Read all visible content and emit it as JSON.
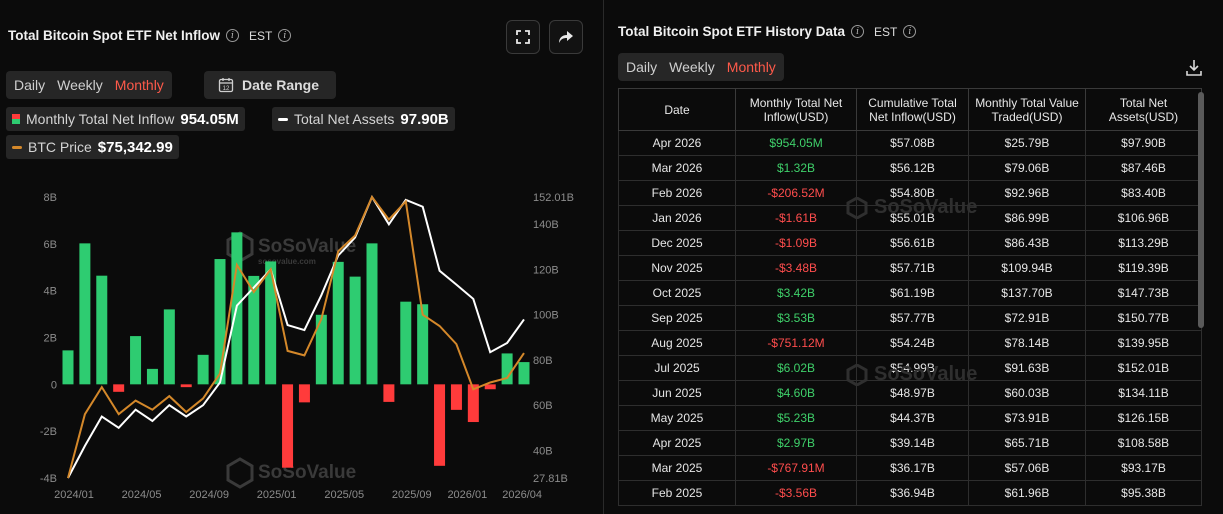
{
  "left": {
    "title": "Total Bitcoin Spot ETF Net Inflow",
    "timezone": "EST",
    "tabs": [
      "Daily",
      "Weekly",
      "Monthly"
    ],
    "active_tab": "Monthly",
    "date_range_label": "Date Range",
    "calendar_day": "12",
    "legend": {
      "inflow_label": "Monthly Total Net Inflow",
      "inflow_value": "954.05M",
      "assets_label": "Total Net Assets",
      "assets_value": "97.90B",
      "btc_label": "BTC Price",
      "btc_value": "$75,342.99"
    },
    "watermark": "SoSoValue",
    "watermark_sub": "sosovalue.com"
  },
  "chart_data": {
    "type": "bar",
    "title": "Total Bitcoin Spot ETF Net Inflow",
    "categories": [
      "2024/01",
      "2024/02",
      "2024/03",
      "2024/04",
      "2024/05",
      "2024/06",
      "2024/07",
      "2024/08",
      "2024/09",
      "2024/10",
      "2024/11",
      "2024/12",
      "2025/01",
      "2025/02",
      "2025/03",
      "2025/04",
      "2025/05",
      "2025/06",
      "2025/07",
      "2025/08",
      "2025/09",
      "2025/10",
      "2025/11",
      "2025/12",
      "2026/01",
      "2026/02",
      "2026/03",
      "2026/04"
    ],
    "x_tick_labels": [
      "2024/01",
      "2024/05",
      "2024/09",
      "2025/01",
      "2025/05",
      "2025/09",
      "2026/01",
      "2026/04"
    ],
    "series": [
      {
        "name": "Monthly Total Net Inflow",
        "axis": "left",
        "unit": "B",
        "color_pos": "#2ecc71",
        "color_neg": "#ff3b3b",
        "values": [
          1.45,
          6.02,
          4.64,
          -0.32,
          2.06,
          0.66,
          3.2,
          -0.12,
          1.26,
          5.35,
          6.49,
          4.63,
          5.25,
          -3.56,
          -0.77,
          2.97,
          5.23,
          4.6,
          6.02,
          -0.75,
          3.53,
          3.42,
          -3.48,
          -1.09,
          -1.61,
          -0.21,
          1.32,
          0.95
        ]
      },
      {
        "name": "Total Net Assets",
        "axis": "right",
        "unit": "B",
        "color": "#ffffff",
        "values": [
          27.81,
          42.0,
          55.0,
          50.0,
          58.0,
          53.0,
          60.0,
          55.0,
          60.0,
          70.0,
          104.0,
          112.0,
          120.0,
          95.38,
          93.17,
          108.58,
          126.15,
          134.11,
          152.01,
          139.95,
          150.77,
          147.73,
          119.39,
          113.29,
          106.96,
          83.4,
          87.46,
          97.9
        ]
      },
      {
        "name": "BTC Price",
        "axis": "right",
        "color": "#d4882a",
        "values": [
          27.81,
          56.0,
          68.0,
          56.0,
          62.0,
          58.0,
          64.0,
          57.0,
          63.0,
          74.0,
          122.0,
          110.0,
          120.0,
          84.0,
          82.0,
          98.0,
          128.0,
          135.0,
          152.0,
          142.0,
          150.0,
          100.0,
          95.0,
          87.0,
          67.0,
          70.0,
          72.0,
          83.0
        ]
      }
    ],
    "left_axis": {
      "ticks": [
        "-4B",
        "-2B",
        "0",
        "2B",
        "4B",
        "6B",
        "8B"
      ],
      "ylim": [
        -4,
        8
      ]
    },
    "right_axis": {
      "ticks": [
        "27.81B",
        "40B",
        "60B",
        "80B",
        "100B",
        "120B",
        "140B",
        "152.01B"
      ],
      "ylim": [
        27.81,
        152.01
      ]
    }
  },
  "right": {
    "title": "Total Bitcoin Spot ETF History Data",
    "timezone": "EST",
    "tabs": [
      "Daily",
      "Weekly",
      "Monthly"
    ],
    "active_tab": "Monthly",
    "download_icon": "download-icon",
    "watermark": "SoSoValue",
    "columns": [
      "Date",
      "Monthly Total Net Inflow(USD)",
      "Cumulative Total Net Inflow(USD)",
      "Monthly Total Value Traded(USD)",
      "Total Net Assets(USD)"
    ],
    "rows": [
      [
        "Apr 2026",
        "$954.05M",
        "$57.08B",
        "$25.79B",
        "$97.90B"
      ],
      [
        "Mar 2026",
        "$1.32B",
        "$56.12B",
        "$79.06B",
        "$87.46B"
      ],
      [
        "Feb 2026",
        "-$206.52M",
        "$54.80B",
        "$92.96B",
        "$83.40B"
      ],
      [
        "Jan 2026",
        "-$1.61B",
        "$55.01B",
        "$86.99B",
        "$106.96B"
      ],
      [
        "Dec 2025",
        "-$1.09B",
        "$56.61B",
        "$86.43B",
        "$113.29B"
      ],
      [
        "Nov 2025",
        "-$3.48B",
        "$57.71B",
        "$109.94B",
        "$119.39B"
      ],
      [
        "Oct 2025",
        "$3.42B",
        "$61.19B",
        "$137.70B",
        "$147.73B"
      ],
      [
        "Sep 2025",
        "$3.53B",
        "$57.77B",
        "$72.91B",
        "$150.77B"
      ],
      [
        "Aug 2025",
        "-$751.12M",
        "$54.24B",
        "$78.14B",
        "$139.95B"
      ],
      [
        "Jul 2025",
        "$6.02B",
        "$54.99B",
        "$91.63B",
        "$152.01B"
      ],
      [
        "Jun 2025",
        "$4.60B",
        "$48.97B",
        "$60.03B",
        "$134.11B"
      ],
      [
        "May 2025",
        "$5.23B",
        "$44.37B",
        "$73.91B",
        "$126.15B"
      ],
      [
        "Apr 2025",
        "$2.97B",
        "$39.14B",
        "$65.71B",
        "$108.58B"
      ],
      [
        "Mar 2025",
        "-$767.91M",
        "$36.17B",
        "$57.06B",
        "$93.17B"
      ],
      [
        "Feb 2025",
        "-$3.56B",
        "$36.94B",
        "$61.96B",
        "$95.38B"
      ]
    ]
  },
  "colors": {
    "positive": "#3fd06a",
    "negative": "#ff4d4d",
    "accent": "#ff5a4a",
    "btc_line": "#d4882a"
  }
}
